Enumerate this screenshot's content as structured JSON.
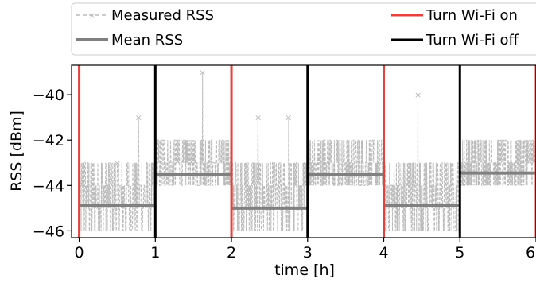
{
  "chart_data": {
    "type": "line",
    "title": "",
    "xlabel": "time [h]",
    "ylabel": "RSS [dBm]",
    "xlim": [
      -0.1,
      6.0
    ],
    "ylim": [
      -46.3,
      -38.7
    ],
    "x_ticks": [
      "0",
      "1",
      "2",
      "3",
      "4",
      "5",
      "6"
    ],
    "y_ticks": [
      "−40",
      "−42",
      "−44",
      "−46"
    ],
    "x_tick_values": [
      0,
      1,
      2,
      3,
      4,
      5,
      6
    ],
    "y_tick_values": [
      -40,
      -42,
      -44,
      -46
    ],
    "legend": {
      "placement": "top (above plot)",
      "entries": [
        {
          "label": "Measured RSS",
          "style": "dashed-x",
          "color": "#bbbbbb"
        },
        {
          "label": "Turn Wi-Fi on",
          "style": "line",
          "color": "#e8413c"
        },
        {
          "label": "Mean RSS",
          "style": "thick-line",
          "color": "#808080"
        },
        {
          "label": "Turn Wi-Fi off",
          "style": "line",
          "color": "#000000"
        }
      ]
    },
    "colors": {
      "measured": "#bbbbbb",
      "mean": "#808080",
      "wifi_on": "#e8413c",
      "wifi_off": "#000000"
    },
    "series": [
      {
        "name": "Mean RSS",
        "segments": [
          {
            "x": [
              0,
              1
            ],
            "y": -44.9
          },
          {
            "x": [
              1,
              2
            ],
            "y": -43.5
          },
          {
            "x": [
              2,
              3
            ],
            "y": -45.0
          },
          {
            "x": [
              3,
              4
            ],
            "y": -43.5
          },
          {
            "x": [
              4,
              5
            ],
            "y": -44.9
          },
          {
            "x": [
              5,
              6
            ],
            "y": -43.45
          }
        ]
      },
      {
        "name": "Measured RSS",
        "off_phase_range": [
          -46,
          -43
        ],
        "on_phase_range": [
          -44,
          -42
        ],
        "spikes": [
          {
            "x": 0.5,
            "y": -43
          },
          {
            "x": 0.78,
            "y": -41
          },
          {
            "x": 1.62,
            "y": -39
          },
          {
            "x": 2.35,
            "y": -41
          },
          {
            "x": 2.75,
            "y": -41
          },
          {
            "x": 4.45,
            "y": -40
          }
        ]
      }
    ],
    "wifi_on_times": [
      0,
      2,
      4,
      6
    ],
    "wifi_off_times": [
      1,
      3,
      5
    ]
  }
}
